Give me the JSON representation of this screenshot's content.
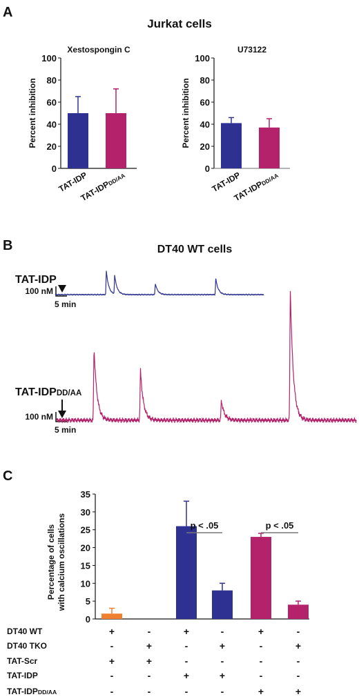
{
  "panel_labels": [
    "A",
    "B",
    "C"
  ],
  "colors": {
    "blue": "#2f3192",
    "magenta": "#b3226b",
    "orange": "#f08030",
    "gray": "#777777"
  },
  "chart_data": [
    {
      "type": "bar",
      "panel": "A",
      "title": "Xestospongin C",
      "group_title": "Jurkat cells",
      "ylabel": "Percent inhibition",
      "ylim": [
        0,
        100
      ],
      "yticks": [
        0,
        20,
        40,
        60,
        80,
        100
      ],
      "categories": [
        {
          "main": "TAT-IDP",
          "sub": ""
        },
        {
          "main": "TAT-IDP",
          "sub": "DD/AA"
        }
      ],
      "values": [
        50,
        50
      ],
      "errors": [
        15,
        22
      ],
      "colors": [
        "#2f3192",
        "#b3226b"
      ]
    },
    {
      "type": "bar",
      "panel": "A",
      "title": "U73122",
      "ylabel": "Percent inhibition",
      "ylim": [
        0,
        100
      ],
      "yticks": [
        0,
        20,
        40,
        60,
        80,
        100
      ],
      "categories": [
        {
          "main": "TAT-IDP",
          "sub": ""
        },
        {
          "main": "TAT-IDP",
          "sub": "DD/AA"
        }
      ],
      "values": [
        41,
        37
      ],
      "errors": [
        5,
        8
      ],
      "colors": [
        "#2f3192",
        "#b3226b"
      ]
    },
    {
      "type": "line",
      "panel": "B",
      "title": "DT40 WT cells",
      "traces": [
        {
          "label_main": "TAT-IDP",
          "label_sub": "",
          "color": "#2f3192",
          "scale_y": "100 nM",
          "scale_x": "5 min",
          "peaks": [
            {
              "t": 0.245,
              "h": 0.95
            },
            {
              "t": 0.285,
              "h": 0.75
            },
            {
              "t": 0.48,
              "h": 0.45
            },
            {
              "t": 0.77,
              "h": 0.65
            }
          ]
        },
        {
          "label_main": "TAT-IDP",
          "label_sub": "DD/AA",
          "color": "#b3226b",
          "scale_y": "100 nM",
          "scale_x": "5 min",
          "peaks": [
            {
              "t": 0.125,
              "h": 0.55
            },
            {
              "t": 0.28,
              "h": 0.38
            },
            {
              "t": 0.55,
              "h": 0.15
            },
            {
              "t": 0.78,
              "h": 1.0
            }
          ]
        }
      ]
    },
    {
      "type": "bar",
      "panel": "C",
      "ylabel_lines": [
        "Percentage of cells",
        "with calcium oscillations"
      ],
      "ylim": [
        0,
        35
      ],
      "yticks": [
        0,
        5,
        10,
        15,
        20,
        25,
        30,
        35
      ],
      "values": [
        1.5,
        0,
        26,
        8,
        23,
        4
      ],
      "errors": [
        1.5,
        0,
        7,
        2,
        1,
        1
      ],
      "colors": [
        "#f08030",
        "#f08030",
        "#2f3192",
        "#2f3192",
        "#b3226b",
        "#b3226b"
      ],
      "significance": [
        {
          "from": 2,
          "to": 3,
          "label": "p < .05"
        },
        {
          "from": 4,
          "to": 5,
          "label": "p < .05"
        }
      ],
      "conditions": [
        {
          "main": "DT40 WT",
          "sub": "",
          "marks": [
            "+",
            "-",
            "+",
            "-",
            "+",
            "-"
          ]
        },
        {
          "main": "DT40 TKO",
          "sub": "",
          "marks": [
            "-",
            "+",
            "-",
            "+",
            "-",
            "+"
          ]
        },
        {
          "main": "TAT-Scr",
          "sub": "",
          "marks": [
            "+",
            "+",
            "-",
            "-",
            "-",
            "-"
          ]
        },
        {
          "main": "TAT-IDP",
          "sub": "",
          "marks": [
            "-",
            "-",
            "+",
            "+",
            "-",
            "-"
          ]
        },
        {
          "main": "TAT-IDP",
          "sub": "DD/AA",
          "marks": [
            "-",
            "-",
            "-",
            "-",
            "+",
            "+"
          ]
        }
      ]
    }
  ]
}
